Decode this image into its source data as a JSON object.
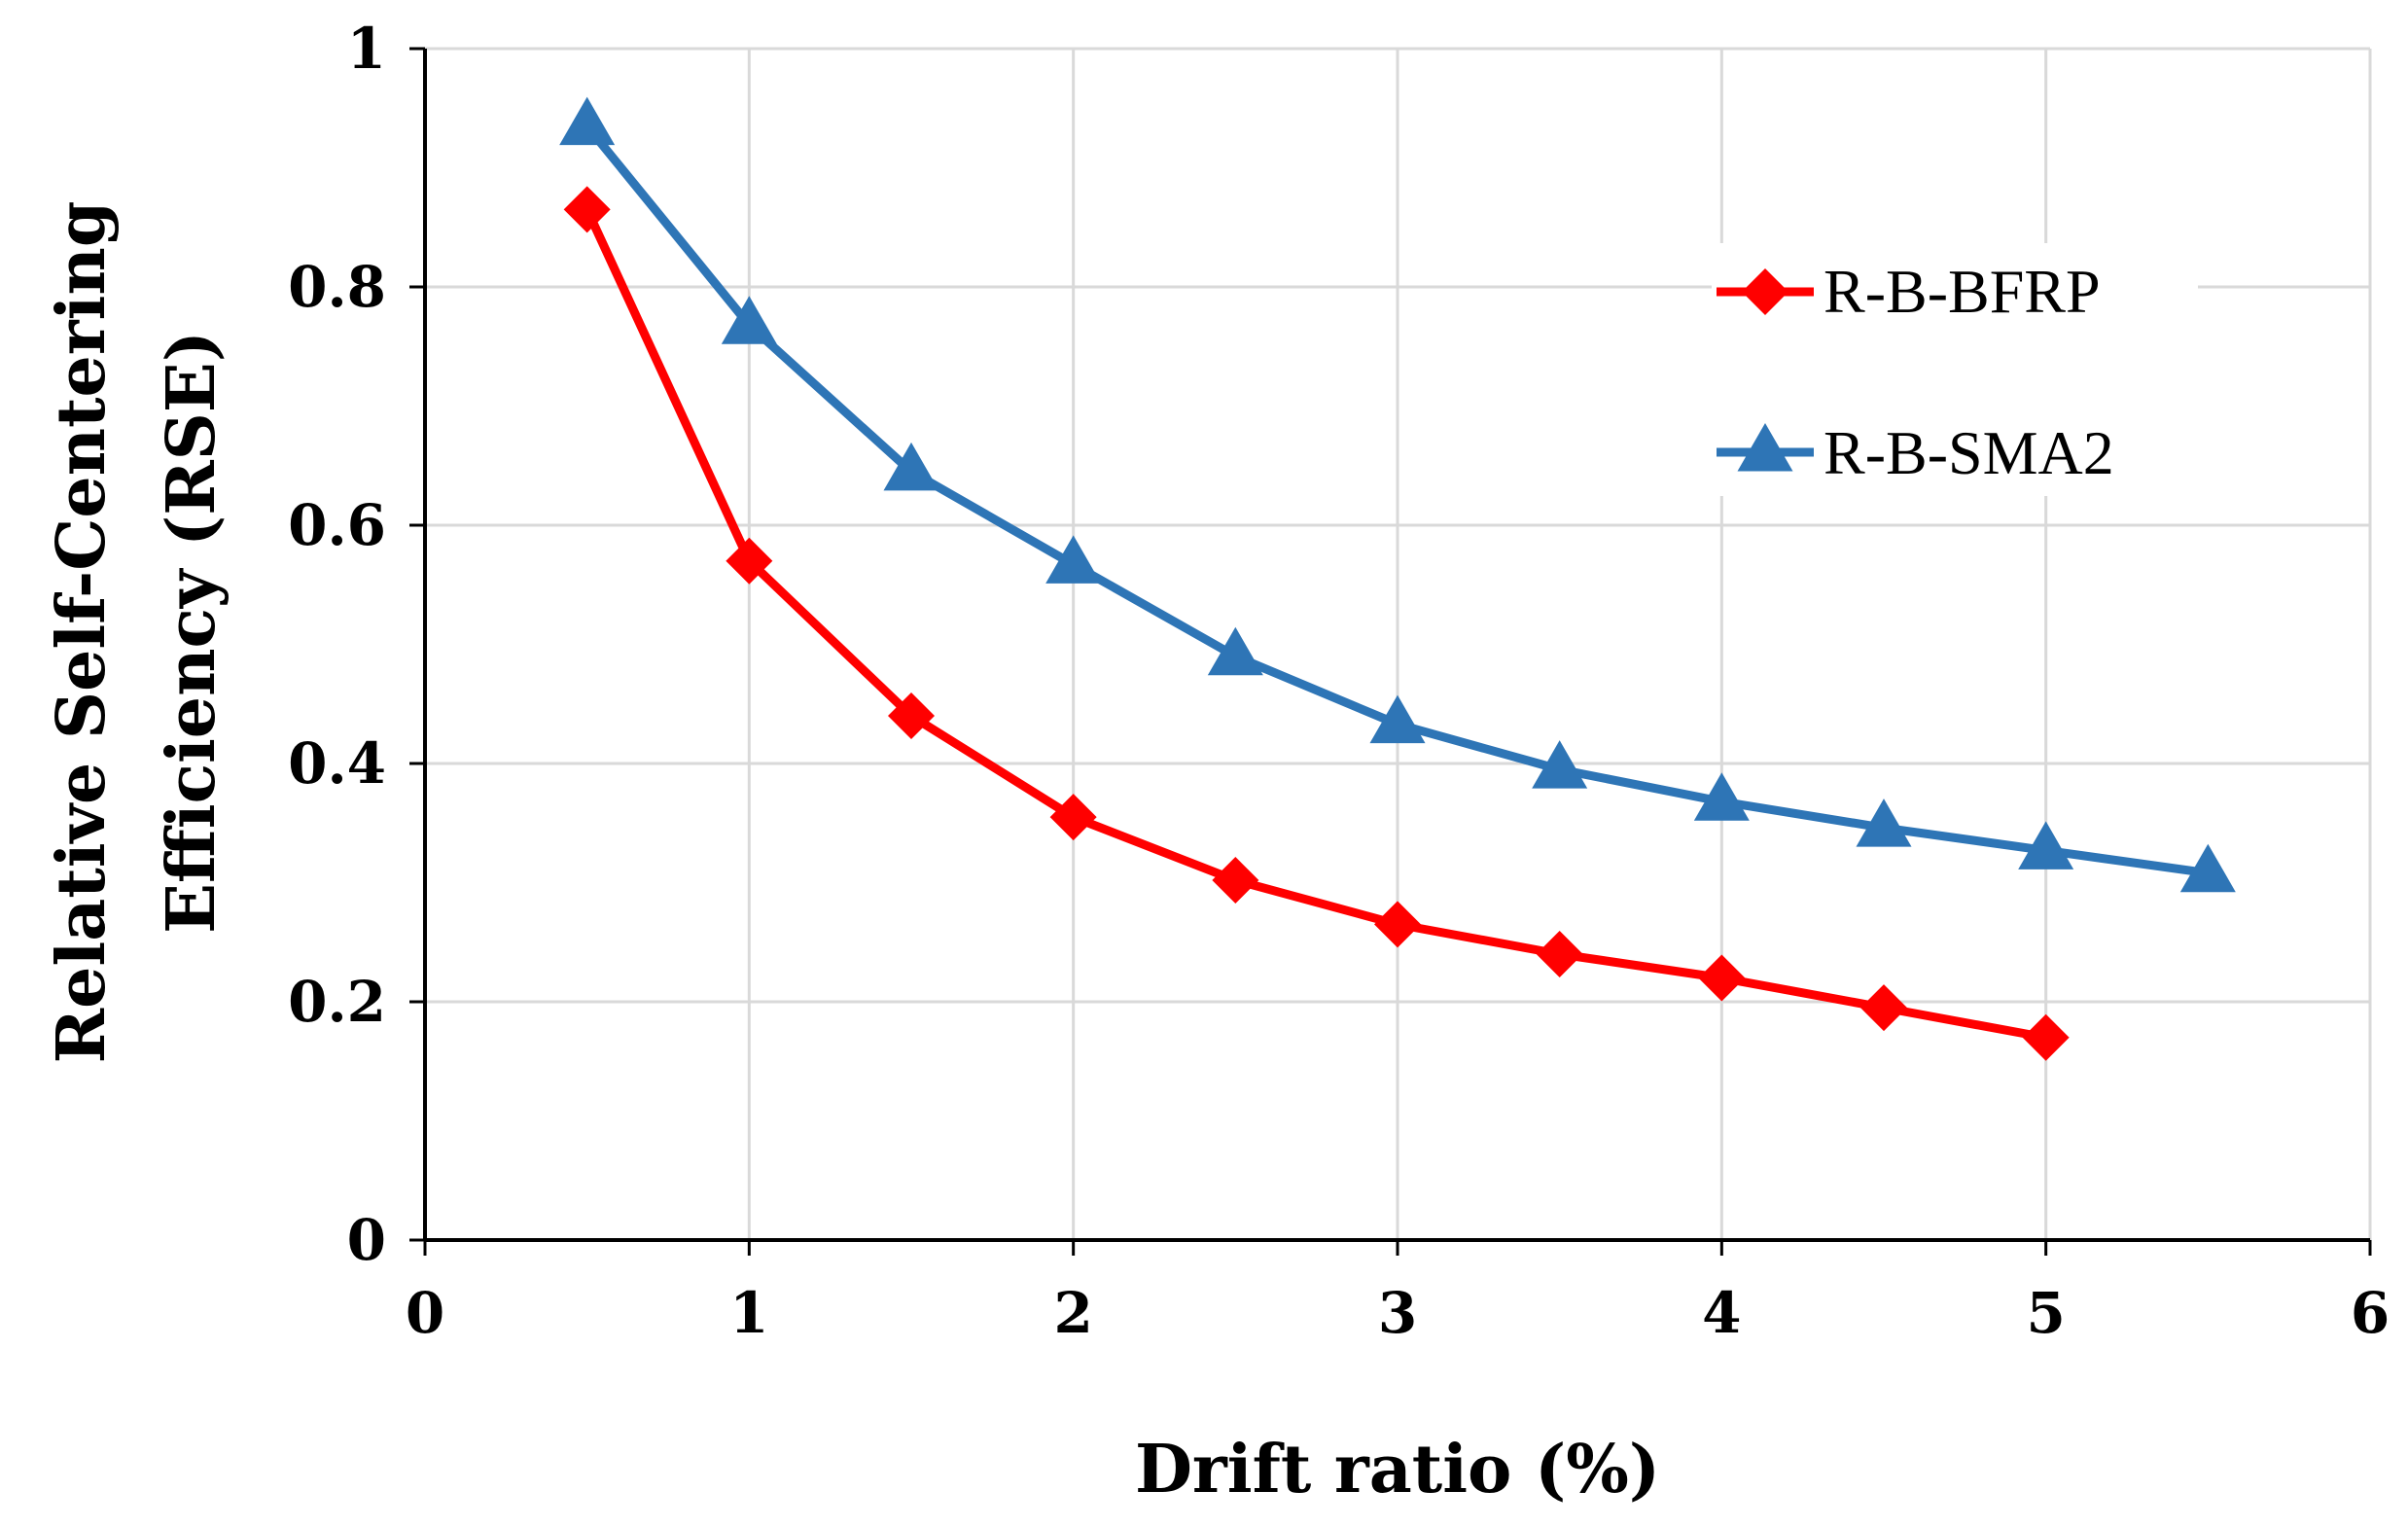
{
  "chart_data": {
    "type": "line",
    "title": "",
    "xlabel": "Drift ratio (%)",
    "ylabel_line1": "Relative Self-Centering",
    "ylabel_line2": "Efficiency (RSE)",
    "xlim": [
      0,
      6
    ],
    "ylim": [
      0,
      1
    ],
    "x_ticks": [
      0,
      1,
      2,
      3,
      4,
      5,
      6
    ],
    "x_tick_labels": [
      "0",
      "1",
      "2",
      "3",
      "4",
      "5",
      "6"
    ],
    "y_ticks": [
      0,
      0.2,
      0.4,
      0.6,
      0.8,
      1
    ],
    "y_tick_labels": [
      "0",
      "0.2",
      "0.4",
      "0.6",
      "0.8",
      "1"
    ],
    "grid": true,
    "legend_position": "right",
    "series": [
      {
        "name": "R-B-BFRP",
        "color": "#ff0000",
        "marker": "diamond",
        "x": [
          0.5,
          1,
          1.5,
          2,
          2.5,
          3,
          3.5,
          4,
          4.5,
          5
        ],
        "values": [
          0.865,
          0.57,
          0.44,
          0.355,
          0.302,
          0.265,
          0.24,
          0.22,
          0.195,
          0.17
        ]
      },
      {
        "name": "R-B-SMA2",
        "color": "#2e75b6",
        "marker": "triangle",
        "x": [
          0.5,
          1,
          1.5,
          2,
          2.5,
          3,
          3.5,
          4,
          4.5,
          5,
          5.5
        ],
        "values": [
          0.935,
          0.768,
          0.645,
          0.567,
          0.49,
          0.433,
          0.395,
          0.368,
          0.346,
          0.327,
          0.308
        ]
      }
    ]
  }
}
